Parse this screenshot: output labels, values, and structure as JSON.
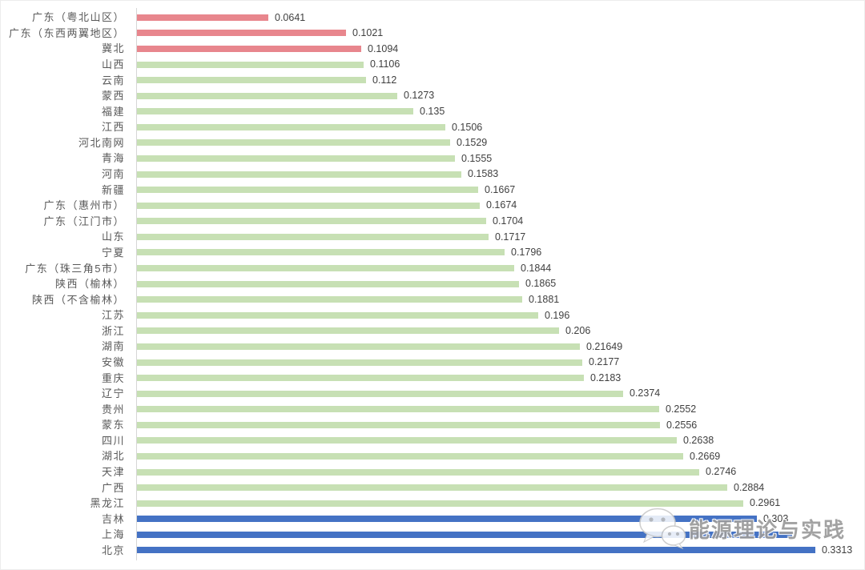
{
  "watermark": {
    "text": "能源理论与实践",
    "icon": "wechat-icon"
  },
  "colors": {
    "low_highlight": "#e8868d",
    "normal": "#c7e0b4",
    "high_highlight": "#4472c4",
    "axis_line": "#d6d6d6",
    "category_label": "#595959",
    "value_label": "#3f3f3f"
  },
  "chart_data": {
    "type": "bar",
    "orientation": "horizontal",
    "title": "",
    "xlabel": "",
    "ylabel": "",
    "grid": false,
    "legend": false,
    "value_axis_range": [
      0,
      0.35
    ],
    "sorted": "ascending top to bottom",
    "rows": [
      {
        "label": "广东（粤北山区）",
        "value": 0.0641,
        "value_label": "0.0641",
        "group": "low"
      },
      {
        "label": "广东（东西两翼地区）",
        "value": 0.1021,
        "value_label": "0.1021",
        "group": "low"
      },
      {
        "label": "冀北",
        "value": 0.1094,
        "value_label": "0.1094",
        "group": "low"
      },
      {
        "label": "山西",
        "value": 0.1106,
        "value_label": "0.1106",
        "group": "normal"
      },
      {
        "label": "云南",
        "value": 0.112,
        "value_label": "0.112",
        "group": "normal"
      },
      {
        "label": "蒙西",
        "value": 0.1273,
        "value_label": "0.1273",
        "group": "normal"
      },
      {
        "label": "福建",
        "value": 0.135,
        "value_label": "0.135",
        "group": "normal"
      },
      {
        "label": "江西",
        "value": 0.1506,
        "value_label": "0.1506",
        "group": "normal"
      },
      {
        "label": "河北南网",
        "value": 0.1529,
        "value_label": "0.1529",
        "group": "normal"
      },
      {
        "label": "青海",
        "value": 0.1555,
        "value_label": "0.1555",
        "group": "normal"
      },
      {
        "label": "河南",
        "value": 0.1583,
        "value_label": "0.1583",
        "group": "normal"
      },
      {
        "label": "新疆",
        "value": 0.1667,
        "value_label": "0.1667",
        "group": "normal"
      },
      {
        "label": "广东（惠州市）",
        "value": 0.1674,
        "value_label": "0.1674",
        "group": "normal"
      },
      {
        "label": "广东（江门市）",
        "value": 0.1704,
        "value_label": "0.1704",
        "group": "normal"
      },
      {
        "label": "山东",
        "value": 0.1717,
        "value_label": "0.1717",
        "group": "normal"
      },
      {
        "label": "宁夏",
        "value": 0.1796,
        "value_label": "0.1796",
        "group": "normal"
      },
      {
        "label": "广东（珠三角5市）",
        "value": 0.1844,
        "value_label": "0.1844",
        "group": "normal"
      },
      {
        "label": "陕西（榆林）",
        "value": 0.1865,
        "value_label": "0.1865",
        "group": "normal"
      },
      {
        "label": "陕西（不含榆林）",
        "value": 0.1881,
        "value_label": "0.1881",
        "group": "normal"
      },
      {
        "label": "江苏",
        "value": 0.196,
        "value_label": "0.196",
        "group": "normal"
      },
      {
        "label": "浙江",
        "value": 0.206,
        "value_label": "0.206",
        "group": "normal"
      },
      {
        "label": "湖南",
        "value": 0.21649,
        "value_label": "0.21649",
        "group": "normal"
      },
      {
        "label": "安徽",
        "value": 0.2177,
        "value_label": "0.2177",
        "group": "normal"
      },
      {
        "label": "重庆",
        "value": 0.2183,
        "value_label": "0.2183",
        "group": "normal"
      },
      {
        "label": "辽宁",
        "value": 0.2374,
        "value_label": "0.2374",
        "group": "normal"
      },
      {
        "label": "贵州",
        "value": 0.2552,
        "value_label": "0.2552",
        "group": "normal"
      },
      {
        "label": "蒙东",
        "value": 0.2556,
        "value_label": "0.2556",
        "group": "normal"
      },
      {
        "label": "四川",
        "value": 0.2638,
        "value_label": "0.2638",
        "group": "normal"
      },
      {
        "label": "湖北",
        "value": 0.2669,
        "value_label": "0.2669",
        "group": "normal"
      },
      {
        "label": "天津",
        "value": 0.2746,
        "value_label": "0.2746",
        "group": "normal"
      },
      {
        "label": "广西",
        "value": 0.2884,
        "value_label": "0.2884",
        "group": "normal"
      },
      {
        "label": "黑龙江",
        "value": 0.2961,
        "value_label": "0.2961",
        "group": "normal"
      },
      {
        "label": "吉林",
        "value": 0.303,
        "value_label": "0.303",
        "group": "high"
      },
      {
        "label": "上海",
        "value": 0.32,
        "value_label": "",
        "group": "high",
        "value_label_hidden_by_watermark": true
      },
      {
        "label": "北京",
        "value": 0.3313,
        "value_label": "0.3313",
        "group": "high"
      }
    ]
  }
}
